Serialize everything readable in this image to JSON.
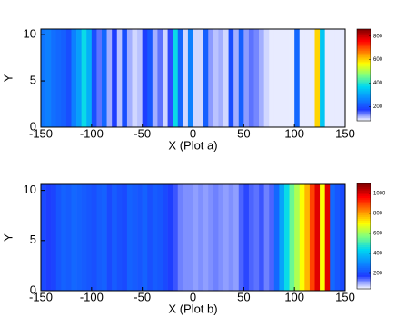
{
  "chart_data": [
    {
      "type": "heatmap",
      "xlabel": "X (Plot a)",
      "ylabel": "Y",
      "xlim": [
        -150,
        150
      ],
      "ylim": [
        0,
        10.6
      ],
      "xticks": [
        -150,
        -100,
        -50,
        0,
        50,
        100,
        150
      ],
      "yticks": [
        0,
        5,
        10
      ],
      "clim": [
        80,
        860
      ],
      "cticks": [
        200,
        400,
        600,
        800
      ],
      "colormap": [
        "#ffffff",
        "#1e3cff",
        "#0a8cff",
        "#00d8f0",
        "#80ff80",
        "#ffff00",
        "#ff8000",
        "#ff0000",
        "#800000"
      ],
      "x": [
        -147.5,
        -142.5,
        -137.5,
        -132.5,
        -127.5,
        -122.5,
        -117.5,
        -112.5,
        -107.5,
        -102.5,
        -97.5,
        -92.5,
        -87.5,
        -82.5,
        -77.5,
        -72.5,
        -67.5,
        -62.5,
        -57.5,
        -52.5,
        -47.5,
        -42.5,
        -37.5,
        -32.5,
        -27.5,
        -22.5,
        -17.5,
        -12.5,
        -7.5,
        -2.5,
        2.5,
        7.5,
        12.5,
        17.5,
        22.5,
        27.5,
        32.5,
        37.5,
        42.5,
        47.5,
        52.5,
        57.5,
        62.5,
        67.5,
        72.5,
        77.5,
        82.5,
        87.5,
        92.5,
        97.5,
        102.5,
        107.5,
        112.5,
        117.5,
        122.5,
        127.5,
        132.5,
        137.5,
        142.5,
        147.5
      ],
      "values": [
        250,
        260,
        240,
        230,
        220,
        200,
        260,
        300,
        380,
        320,
        200,
        150,
        230,
        120,
        180,
        110,
        200,
        120,
        100,
        110,
        180,
        210,
        120,
        150,
        100,
        170,
        380,
        230,
        100,
        260,
        100,
        100,
        220,
        130,
        110,
        120,
        100,
        200,
        120,
        220,
        130,
        150,
        140,
        120,
        100,
        90,
        90,
        90,
        90,
        90,
        230,
        90,
        90,
        90,
        600,
        350,
        90,
        90,
        90,
        90
      ]
    },
    {
      "type": "heatmap",
      "xlabel": "X (Plot b)",
      "ylabel": "Y",
      "xlim": [
        -150,
        150
      ],
      "ylim": [
        0,
        10.6
      ],
      "xticks": [
        -150,
        -100,
        -50,
        0,
        50,
        100,
        150
      ],
      "yticks": [
        0,
        5,
        10
      ],
      "clim": [
        45,
        1100
      ],
      "cticks": [
        200,
        400,
        600,
        800,
        1000
      ],
      "colormap": [
        "#ffffff",
        "#1e3cff",
        "#0a8cff",
        "#00d8f0",
        "#80ff80",
        "#ffff00",
        "#ff8000",
        "#ff0000",
        "#800000"
      ],
      "x": [
        -147.5,
        -142.5,
        -137.5,
        -132.5,
        -127.5,
        -122.5,
        -117.5,
        -112.5,
        -107.5,
        -102.5,
        -97.5,
        -92.5,
        -87.5,
        -82.5,
        -77.5,
        -72.5,
        -67.5,
        -62.5,
        -57.5,
        -52.5,
        -47.5,
        -42.5,
        -37.5,
        -32.5,
        -27.5,
        -22.5,
        -17.5,
        -12.5,
        -7.5,
        -2.5,
        2.5,
        7.5,
        12.5,
        17.5,
        22.5,
        27.5,
        32.5,
        37.5,
        42.5,
        47.5,
        52.5,
        57.5,
        62.5,
        67.5,
        72.5,
        77.5,
        82.5,
        87.5,
        92.5,
        97.5,
        102.5,
        107.5,
        112.5,
        117.5,
        122.5,
        127.5,
        132.5,
        137.5,
        142.5,
        147.5
      ],
      "values": [
        200,
        180,
        190,
        220,
        240,
        230,
        250,
        240,
        230,
        220,
        210,
        230,
        240,
        200,
        230,
        210,
        200,
        240,
        230,
        220,
        240,
        210,
        230,
        220,
        200,
        180,
        160,
        130,
        120,
        120,
        110,
        120,
        110,
        120,
        130,
        120,
        110,
        120,
        110,
        150,
        170,
        150,
        140,
        160,
        130,
        150,
        250,
        350,
        450,
        550,
        620,
        700,
        780,
        900,
        1000,
        700,
        1000,
        250,
        220,
        200
      ]
    }
  ]
}
